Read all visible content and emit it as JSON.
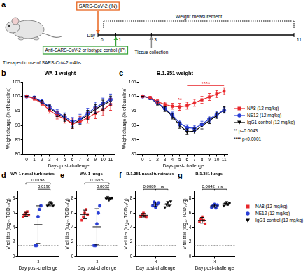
{
  "panel_labels": [
    "a",
    "b",
    "c",
    "d",
    "e",
    "f",
    "g"
  ],
  "diagram": {
    "title": "Therapeutic use of SARS-CoV-2 mAbs",
    "challenge": {
      "day": 0,
      "label": "SARS-CoV-2 (IN)"
    },
    "measurement": "Weight measurement",
    "axis_label": "Day",
    "days": [
      0,
      1,
      3,
      11
    ],
    "treatment": {
      "day": 1,
      "label": "Anti-SARS-CoV-2 or isotype control (IP)"
    },
    "collection": {
      "day": 3,
      "label": "Tissue collection"
    }
  },
  "chart_data": [
    {
      "type": "line",
      "title": "WA-1 weight",
      "x_label": "Days post-challenge",
      "y_label": "Weight change (% of baseline)",
      "x": [
        0,
        1,
        2,
        3,
        4,
        5,
        6,
        7,
        8,
        9,
        10,
        11
      ],
      "xlim": [
        -0.5,
        11.5
      ],
      "xticks": [
        0,
        1,
        2,
        3,
        4,
        5,
        6,
        7,
        8,
        9,
        10,
        11
      ],
      "ylim": [
        80,
        105
      ],
      "yticks": [
        80,
        85,
        90,
        95,
        100,
        105
      ],
      "series": [
        {
          "name": "NA8 (12 mg/kg)",
          "color": "#e8262b",
          "marker": "square",
          "values": [
            100,
            99.2,
            97.6,
            95.2,
            93.4,
            92.2,
            90.6,
            91.2,
            92.6,
            94.2,
            95.4,
            97.2
          ],
          "errors": [
            0,
            0.5,
            0.8,
            1.0,
            1.2,
            1.4,
            1.6,
            1.8,
            1.8,
            1.9,
            2.0,
            2.0
          ]
        },
        {
          "name": "NE12 (12 mg/kg)",
          "color": "#2a3fd6",
          "marker": "circle",
          "values": [
            100,
            99.6,
            98.2,
            96.4,
            94.4,
            93.0,
            91.2,
            92.2,
            94.2,
            96.2,
            97.6,
            99.0
          ],
          "errors": [
            0,
            0.4,
            0.6,
            0.8,
            1.0,
            1.3,
            1.5,
            1.6,
            1.7,
            1.8,
            1.8,
            1.8
          ]
        },
        {
          "name": "IgG1 control (12 mg/kg)",
          "color": "#000000",
          "marker": "triangle-down",
          "values": [
            100,
            99.5,
            98.0,
            96.2,
            94.0,
            92.6,
            90.4,
            91.8,
            93.6,
            95.6,
            97.0,
            98.4
          ],
          "errors": [
            0,
            0.4,
            0.6,
            0.8,
            1.0,
            1.2,
            1.4,
            1.5,
            1.6,
            1.6,
            1.7,
            1.7
          ]
        }
      ]
    },
    {
      "type": "line",
      "title": "B.1.351 weight",
      "x_label": "Days post-challenge",
      "y_label": "Weight change (% of baseline)",
      "x": [
        0,
        1,
        2,
        3,
        4,
        5,
        6,
        7,
        8,
        9,
        10,
        11
      ],
      "xlim": [
        -0.5,
        11.5
      ],
      "xticks": [
        0,
        1,
        2,
        3,
        4,
        5,
        6,
        7,
        8,
        9,
        10,
        11
      ],
      "ylim": [
        80,
        105
      ],
      "yticks": [
        80,
        85,
        90,
        95,
        100,
        105
      ],
      "legend": "right",
      "series": [
        {
          "name": "NA8 (12 mg/kg)",
          "color": "#e8262b",
          "marker": "square",
          "values": [
            100,
            99.6,
            98.2,
            97.2,
            96.6,
            96.4,
            96.8,
            97.8,
            98.8,
            99.8,
            100.8,
            101.8
          ],
          "errors": [
            0,
            0.4,
            0.6,
            0.8,
            1.0,
            1.2,
            1.2,
            1.2,
            1.2,
            1.2,
            1.2,
            1.2
          ]
        },
        {
          "name": "NE12 (12 mg/kg)",
          "color": "#2a3fd6",
          "marker": "circle",
          "values": [
            100,
            99.4,
            97.8,
            95.8,
            93.6,
            90.8,
            89.2,
            89.0,
            90.4,
            92.2,
            93.8,
            95.2
          ],
          "errors": [
            0,
            0.4,
            0.6,
            0.8,
            1.0,
            1.0,
            1.0,
            1.0,
            1.0,
            1.0,
            1.0,
            1.0
          ]
        },
        {
          "name": "IgG1 control (12 mg/kg)",
          "color": "#000000",
          "marker": "triangle-down",
          "values": [
            100,
            99.4,
            97.6,
            95.6,
            93.2,
            90.0,
            87.8,
            88.0,
            89.8,
            91.6,
            93.4,
            95.4
          ],
          "errors": [
            0,
            0.4,
            0.6,
            0.8,
            1.0,
            1.0,
            1.0,
            1.0,
            1.0,
            1.0,
            1.0,
            1.0
          ]
        }
      ],
      "annotations": [
        {
          "text": "**",
          "x": 5,
          "note": "p=0.0043",
          "color": "#e8262b"
        },
        {
          "text": "****",
          "x": [
            6,
            11
          ],
          "note": "p<0.0001",
          "color": "#e8262b"
        }
      ]
    },
    {
      "type": "dot",
      "title": "WA-1 nasal turbinates",
      "x_label": "Day post-challenge",
      "y_label": "Viral titer (log₁₀ TCID₅₀/g)",
      "categories": [
        "3"
      ],
      "ylim": [
        0,
        9
      ],
      "yticks": [
        0,
        2,
        4,
        6,
        8
      ],
      "detection_limit": 1.5,
      "series": [
        {
          "name": "NA8 (12 mg/kg)",
          "color": "#e8262b",
          "marker": "square",
          "values": [
            [
              5.5,
              5.8,
              6.0,
              6.2,
              5.7
            ]
          ],
          "mean": [
            5.8
          ],
          "error": [
            0.3
          ]
        },
        {
          "name": "NE12 (12 mg/kg)",
          "color": "#2a3fd6",
          "marker": "circle",
          "values": [
            [
              1.5,
              1.5,
              5.5,
              6.5,
              7.0
            ]
          ],
          "mean": [
            4.4
          ],
          "error": [
            2.6
          ]
        },
        {
          "name": "IgG1 control (12 mg/kg)",
          "color": "#000000",
          "marker": "triangle-down",
          "values": [
            [
              7.0,
              7.2,
              7.5,
              7.3,
              7.0
            ]
          ],
          "mean": [
            7.2
          ],
          "error": [
            0.2
          ]
        }
      ],
      "comparisons": [
        {
          "between": [
            "NE12 (12 mg/kg)",
            "IgG1 control (12 mg/kg)"
          ],
          "label": "0.0198"
        },
        {
          "between": [
            "NA8 (12 mg/kg)",
            "IgG1 control (12 mg/kg)"
          ],
          "label": "0.0198"
        }
      ]
    },
    {
      "type": "dot",
      "title": "WA-1 lungs",
      "x_label": "Day post-challenge",
      "y_label": "Viral titer (log₁₀ TCID₅₀/g)",
      "categories": [
        "3"
      ],
      "ylim": [
        0,
        9
      ],
      "yticks": [
        0,
        2,
        4,
        6,
        8
      ],
      "detection_limit": 1.5,
      "series": [
        {
          "name": "NA8 (12 mg/kg)",
          "color": "#e8262b",
          "marker": "square",
          "values": [
            [
              5.0,
              5.5,
              6.0,
              6.5,
              5.8
            ]
          ],
          "mean": [
            5.8
          ],
          "error": [
            0.6
          ]
        },
        {
          "name": "NE12 (12 mg/kg)",
          "color": "#2a3fd6",
          "marker": "circle",
          "values": [
            [
              1.5,
              1.5,
              4.5,
              6.0,
              7.0
            ]
          ],
          "mean": [
            4.1
          ],
          "error": [
            2.5
          ]
        },
        {
          "name": "IgG1 control (12 mg/kg)",
          "color": "#000000",
          "marker": "triangle-down",
          "values": [
            [
              8.0,
              8.2,
              7.8,
              8.0,
              8.1
            ]
          ],
          "mean": [
            8.0
          ],
          "error": [
            0.15
          ]
        }
      ],
      "comparisons": [
        {
          "between": [
            "NE12 (12 mg/kg)",
            "IgG1 control (12 mg/kg)"
          ],
          "label": "0.0032"
        },
        {
          "between": [
            "NA8 (12 mg/kg)",
            "IgG1 control (12 mg/kg)"
          ],
          "label": "0.0315"
        }
      ]
    },
    {
      "type": "dot",
      "title": "B.1.351 nasal turbinates",
      "x_label": "Day post-challenge",
      "y_label": "Viral titer (log₁₀ TCID₅₀/g)",
      "categories": [
        "3"
      ],
      "ylim": [
        0,
        9
      ],
      "yticks": [
        0,
        2,
        4,
        6,
        8
      ],
      "detection_limit": 1.5,
      "series": [
        {
          "name": "NA8 (12 mg/kg)",
          "color": "#e8262b",
          "marker": "square",
          "values": [
            [
              5.5,
              5.8,
              6.0,
              5.6,
              5.4
            ]
          ],
          "mean": [
            5.7
          ],
          "error": [
            0.25
          ]
        },
        {
          "name": "NE12 (12 mg/kg)",
          "color": "#2a3fd6",
          "marker": "circle",
          "values": [
            [
              7.0,
              7.5,
              6.8,
              7.2,
              7.4
            ]
          ],
          "mean": [
            7.2
          ],
          "error": [
            0.3
          ]
        },
        {
          "name": "IgG1 control (12 mg/kg)",
          "color": "#000000",
          "marker": "triangle-down",
          "values": [
            [
              6.8,
              7.2,
              7.5,
              7.0,
              7.6
            ]
          ],
          "mean": [
            7.2
          ],
          "error": [
            0.35
          ]
        }
      ],
      "comparisons": [
        {
          "between": [
            "NA8 (12 mg/kg)",
            "NE12 (12 mg/kg)"
          ],
          "label": "0.0089"
        },
        {
          "between": [
            "NE12 (12 mg/kg)",
            "IgG1 control (12 mg/kg)"
          ],
          "label": "ns"
        }
      ]
    },
    {
      "type": "dot",
      "title": "B.1.351 lungs",
      "x_label": "Day post-challenge",
      "y_label": "Viral titer (log₁₀ TCID₅₀/g)",
      "categories": [
        "3"
      ],
      "ylim": [
        0,
        9
      ],
      "yticks": [
        0,
        2,
        4,
        6,
        8
      ],
      "detection_limit": 1.5,
      "legend": "right",
      "series": [
        {
          "name": "NA8 (12 mg/kg)",
          "color": "#e8262b",
          "marker": "square",
          "values": [
            [
              4.8,
              5.2,
              5.5,
              5.0,
              4.5
            ]
          ],
          "mean": [
            5.0
          ],
          "error": [
            0.4
          ]
        },
        {
          "name": "NE12 (12 mg/kg)",
          "color": "#2a3fd6",
          "marker": "circle",
          "values": [
            [
              6.8,
              7.0,
              7.2,
              6.7,
              7.1
            ]
          ],
          "mean": [
            7.0
          ],
          "error": [
            0.2
          ]
        },
        {
          "name": "IgG1 control (12 mg/kg)",
          "color": "#000000",
          "marker": "triangle-down",
          "values": [
            [
              7.0,
              7.3,
              7.5,
              7.2,
              7.4
            ]
          ],
          "mean": [
            7.3
          ],
          "error": [
            0.2
          ]
        }
      ],
      "comparisons": [
        {
          "between": [
            "NA8 (12 mg/kg)",
            "NE12 (12 mg/kg)"
          ],
          "label": "0.0042"
        },
        {
          "between": [
            "NE12 (12 mg/kg)",
            "IgG1 control (12 mg/kg)"
          ],
          "label": "ns"
        }
      ]
    }
  ]
}
